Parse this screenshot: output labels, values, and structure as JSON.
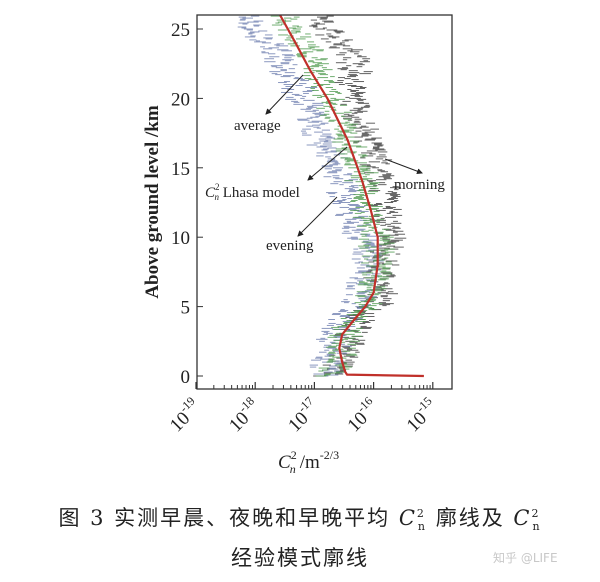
{
  "chart_data": {
    "type": "line",
    "xlabel": {
      "base": "C",
      "sub": "n",
      "sup": "2",
      "unit": "/m",
      "unit_exp": "-2/3"
    },
    "ylabel": "Above ground level /km",
    "x_scale": "log",
    "xlim_log10": [
      -19,
      -14.7
    ],
    "ylim": [
      -0.9,
      26.1
    ],
    "x_ticks": [
      {
        "base": "10",
        "exp": "-19"
      },
      {
        "base": "10",
        "exp": "-18"
      },
      {
        "base": "10",
        "exp": "-17"
      },
      {
        "base": "10",
        "exp": "-16"
      },
      {
        "base": "10",
        "exp": "-15"
      }
    ],
    "y_ticks": [
      "0",
      "5",
      "10",
      "15",
      "20",
      "25"
    ],
    "grid": false,
    "altitude_km": [
      0,
      1,
      2,
      3,
      4,
      5,
      6,
      7,
      8,
      9,
      10,
      11,
      12,
      13,
      14,
      15,
      16,
      17,
      18,
      19,
      20,
      21,
      22,
      23,
      24,
      25,
      26
    ],
    "series": [
      {
        "name": "morning",
        "color": "#3a3a3a",
        "style": "scatter",
        "log10_values": [
          -16.7,
          -16.6,
          -16.4,
          -16.4,
          -16.2,
          -16.0,
          -15.9,
          -15.9,
          -15.85,
          -15.8,
          -15.75,
          -15.8,
          -15.8,
          -15.8,
          -15.85,
          -15.9,
          -16.0,
          -16.1,
          -16.2,
          -16.3,
          -16.35,
          -16.4,
          -16.3,
          -16.35,
          -16.6,
          -16.8,
          -16.9
        ]
      },
      {
        "name": "evening",
        "color": "#6f7fb0",
        "style": "scatter",
        "log10_values": [
          -16.8,
          -16.8,
          -16.6,
          -16.7,
          -16.5,
          -16.3,
          -16.2,
          -16.15,
          -16.1,
          -16.1,
          -16.2,
          -16.3,
          -16.4,
          -16.5,
          -16.55,
          -16.6,
          -16.75,
          -16.9,
          -17.0,
          -17.05,
          -17.2,
          -17.3,
          -17.5,
          -17.6,
          -17.8,
          -18.0,
          -18.1
        ]
      },
      {
        "name": "average",
        "color": "#4f9a4f",
        "style": "scatter",
        "log10_values": [
          -16.7,
          -16.65,
          -16.5,
          -16.5,
          -16.35,
          -16.15,
          -16.05,
          -16.0,
          -15.95,
          -15.95,
          -15.95,
          -16.05,
          -16.1,
          -16.15,
          -16.2,
          -16.25,
          -16.35,
          -16.45,
          -16.55,
          -16.65,
          -16.75,
          -16.85,
          -16.95,
          -17.05,
          -17.2,
          -17.4,
          -17.5
        ]
      },
      {
        "name": "C_n^2 Lhasa model",
        "color": "#c0302a",
        "style": "line",
        "points": [
          [
            -15.15,
            0
          ],
          [
            -16.45,
            0.1
          ],
          [
            -16.48,
            0.3
          ],
          [
            -16.53,
            1
          ],
          [
            -16.58,
            2
          ],
          [
            -16.53,
            3
          ],
          [
            -16.34,
            4
          ],
          [
            -16.14,
            5
          ],
          [
            -16.0,
            6
          ],
          [
            -15.93,
            8
          ],
          [
            -15.93,
            10
          ],
          [
            -16.05,
            12
          ],
          [
            -16.19,
            14
          ],
          [
            -16.27,
            15
          ],
          [
            -16.44,
            17
          ],
          [
            -16.78,
            20
          ],
          [
            -17.07,
            22
          ],
          [
            -17.32,
            24
          ],
          [
            -17.58,
            26
          ]
        ]
      }
    ],
    "annotations": {
      "average": "average",
      "model_prefix": "C",
      "model_sub": "n",
      "model_sup": "2",
      "model_text": " Lhasa model",
      "evening": "evening",
      "morning": "morning"
    }
  },
  "caption": {
    "line1_a": "图 3  实测早晨、夜晚和早晚平均 ",
    "cn": "C",
    "cn_sub": "n",
    "cn_sup": "2",
    "line1_b": " 廓线及 ",
    "line2": "经验模式廓线"
  },
  "watermark": "知乎 @LIFE"
}
